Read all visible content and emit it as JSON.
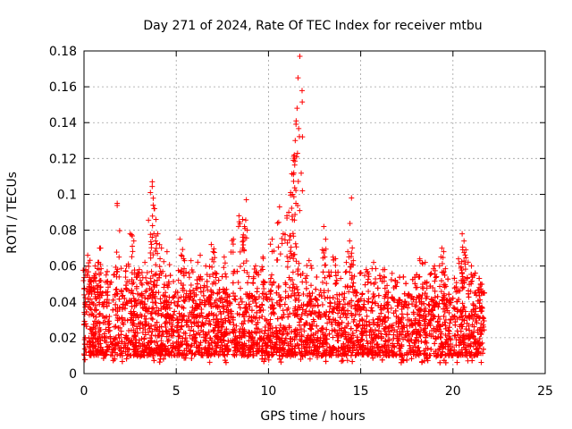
{
  "chart_data": {
    "type": "scatter",
    "title": "Day 271 of 2024, Rate Of TEC Index for receiver mtbu",
    "xlabel": "GPS time / hours",
    "ylabel": "ROTI / TECUs",
    "xlim": [
      0,
      25
    ],
    "ylim": [
      0,
      0.18
    ],
    "xticks": [
      0,
      5,
      10,
      15,
      20,
      25
    ],
    "yticks": [
      0,
      0.02,
      0.04,
      0.06,
      0.08,
      0.1,
      0.12,
      0.14,
      0.16,
      0.18
    ],
    "xtick_labels": [
      "0",
      "5",
      "10",
      "15",
      "20",
      "25"
    ],
    "ytick_labels": [
      "0",
      "0.02",
      "0.04",
      "0.06",
      "0.08",
      "0.1",
      "0.12",
      "0.14",
      "0.16",
      "0.18"
    ],
    "grid": true,
    "marker": "+",
    "color": "#ff0000",
    "x_range_of_data": [
      0,
      21.7
    ],
    "typical_band": [
      0.01,
      0.045
    ],
    "series": [
      {
        "x": [
          0.1,
          0.2,
          0.3,
          0.4,
          0.6,
          0.8,
          0.9,
          1.2,
          1.8,
          1.9,
          2.3,
          2.5,
          2.7,
          3.0,
          3.3,
          3.6,
          3.7,
          3.75,
          3.8,
          3.9,
          4.0,
          4.2,
          4.5,
          5.2,
          5.4,
          5.8,
          6.3,
          6.6,
          6.9,
          7.0,
          7.6,
          8.1,
          8.4,
          8.6,
          8.7,
          8.8,
          9.3,
          9.7,
          10.2,
          10.6,
          10.8,
          11.0,
          11.1,
          11.2,
          11.3,
          11.35,
          11.4,
          11.45,
          11.5,
          11.55,
          11.6,
          11.7,
          12.2,
          13.0,
          13.1,
          13.5,
          14.3,
          14.4,
          14.5,
          14.6,
          15.3,
          15.7,
          16.3,
          18.2,
          18.5,
          19.0,
          19.4,
          19.5,
          20.3,
          20.5,
          20.6,
          20.7,
          21.0,
          21.5,
          21.65
        ],
        "y": [
          0.058,
          0.066,
          0.048,
          0.052,
          0.06,
          0.062,
          0.07,
          0.055,
          0.095,
          0.065,
          0.06,
          0.078,
          0.074,
          0.058,
          0.062,
          0.101,
          0.107,
          0.094,
          0.092,
          0.086,
          0.078,
          0.07,
          0.068,
          0.075,
          0.064,
          0.063,
          0.066,
          0.06,
          0.072,
          0.068,
          0.065,
          0.075,
          0.088,
          0.086,
          0.082,
          0.097,
          0.06,
          0.065,
          0.075,
          0.093,
          0.078,
          0.088,
          0.09,
          0.101,
          0.1,
          0.119,
          0.122,
          0.13,
          0.141,
          0.148,
          0.165,
          0.177,
          0.063,
          0.082,
          0.075,
          0.065,
          0.068,
          0.074,
          0.098,
          0.063,
          0.058,
          0.062,
          0.058,
          0.064,
          0.062,
          0.06,
          0.07,
          0.068,
          0.064,
          0.078,
          0.074,
          0.069,
          0.06,
          0.05,
          0.045
        ]
      }
    ]
  }
}
